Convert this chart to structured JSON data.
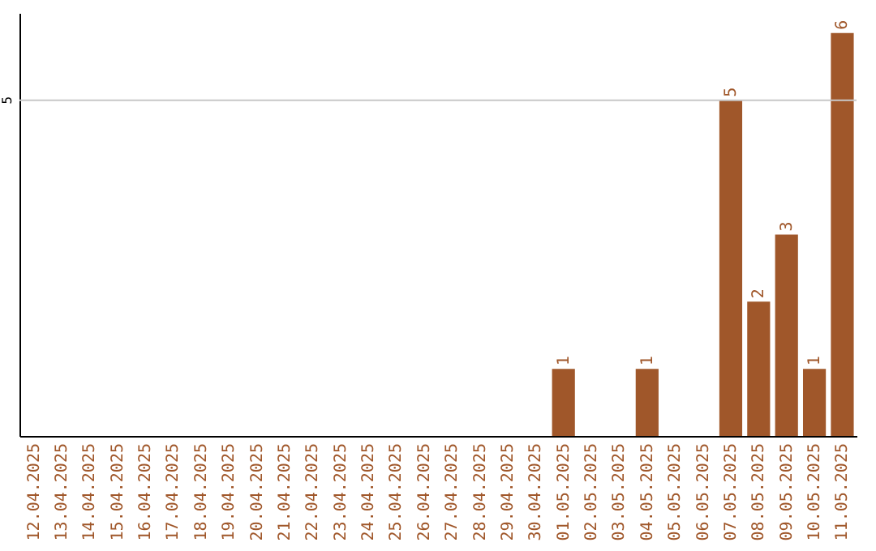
{
  "chart_data": {
    "type": "bar",
    "categories": [
      "12.04.2025",
      "13.04.2025",
      "14.04.2025",
      "15.04.2025",
      "16.04.2025",
      "17.04.2025",
      "18.04.2025",
      "19.04.2025",
      "20.04.2025",
      "21.04.2025",
      "22.04.2025",
      "23.04.2025",
      "24.04.2025",
      "25.04.2025",
      "26.04.2025",
      "27.04.2025",
      "28.04.2025",
      "29.04.2025",
      "30.04.2025",
      "01.05.2025",
      "02.05.2025",
      "03.05.2025",
      "04.05.2025",
      "05.05.2025",
      "06.05.2025",
      "07.05.2025",
      "08.05.2025",
      "09.05.2025",
      "10.05.2025",
      "11.05.2025"
    ],
    "values": [
      null,
      null,
      null,
      null,
      null,
      null,
      null,
      null,
      null,
      null,
      null,
      null,
      null,
      null,
      null,
      null,
      null,
      null,
      null,
      1,
      null,
      null,
      1,
      null,
      null,
      5,
      2,
      3,
      1,
      6
    ],
    "data_labels": true,
    "color": "#a0572a",
    "ylim": [
      0,
      6.3
    ],
    "ref_lines": [
      {
        "axis": "y",
        "value": 5,
        "label": "5",
        "color": "#c8c8c8"
      }
    ]
  }
}
